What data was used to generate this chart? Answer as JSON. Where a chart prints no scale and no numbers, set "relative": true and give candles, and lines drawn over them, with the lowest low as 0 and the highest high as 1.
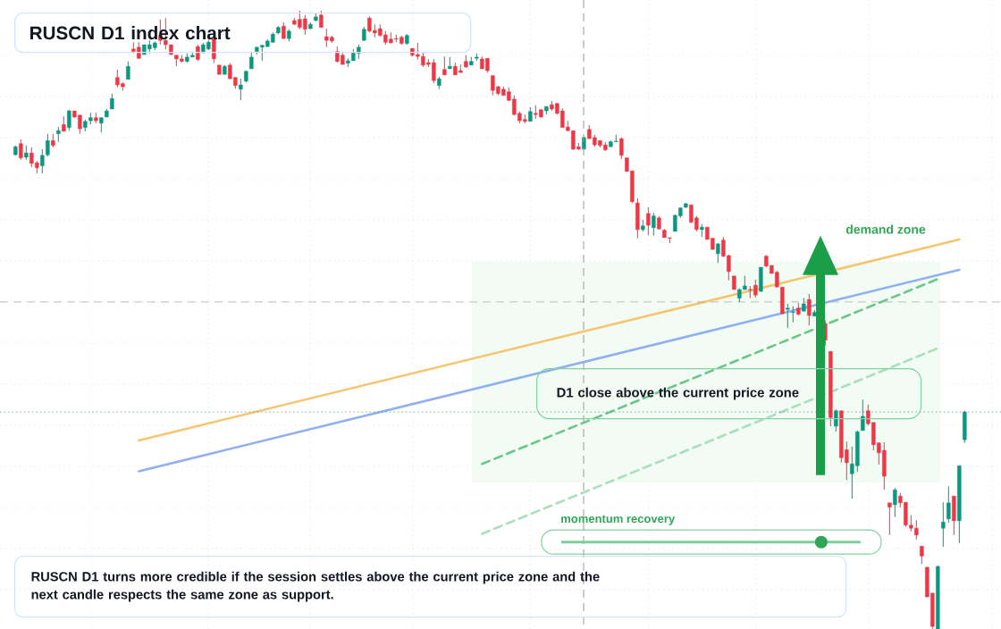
{
  "chart_data": {
    "type": "candlestick",
    "title": "RUSCN D1 index chart",
    "relative": true,
    "grid": true,
    "categories": [
      null,
      null,
      null,
      null,
      null,
      null,
      null,
      null,
      null,
      null,
      null,
      null,
      null,
      null,
      null,
      null,
      null,
      null,
      null,
      null,
      null,
      null,
      null,
      null,
      null,
      null,
      null,
      null,
      null,
      null,
      null,
      null,
      null,
      null,
      null,
      null,
      null,
      null,
      null,
      null,
      null,
      null,
      null,
      null,
      null,
      null,
      null,
      null,
      null,
      null,
      null,
      null,
      null,
      null,
      null,
      null,
      null,
      null,
      null,
      null,
      null,
      null,
      null,
      null,
      null,
      null,
      null,
      null,
      null,
      null,
      null,
      null,
      null,
      null,
      null,
      null,
      null,
      null,
      null,
      null,
      null,
      null,
      null,
      null,
      null,
      null,
      null,
      null,
      null,
      null,
      null,
      null,
      null,
      null,
      null,
      null,
      null,
      null,
      null,
      null,
      null,
      null,
      null,
      null,
      null,
      null,
      null,
      null,
      null,
      null,
      null,
      null,
      null,
      null,
      null,
      null,
      null,
      null,
      null,
      null,
      null,
      null,
      null,
      null,
      null,
      null,
      null,
      null,
      null,
      null,
      null,
      null,
      null,
      null,
      null,
      null,
      null,
      null,
      null,
      null,
      null,
      null,
      null,
      null,
      null,
      null,
      null,
      null,
      null,
      null,
      null,
      null,
      null,
      null,
      null,
      null,
      null,
      null,
      null,
      null,
      null,
      null,
      null,
      null,
      null,
      null,
      null,
      null,
      null,
      null,
      null,
      null,
      null,
      null,
      null,
      null,
      null,
      null
    ],
    "ohlc": [
      [
        0.767,
        0.782,
        0.766,
        0.78
      ],
      [
        0.785,
        0.792,
        0.759,
        0.762
      ],
      [
        0.763,
        0.782,
        0.759,
        0.77
      ],
      [
        0.77,
        0.779,
        0.747,
        0.753
      ],
      [
        0.754,
        0.757,
        0.737,
        0.746
      ],
      [
        0.749,
        0.776,
        0.737,
        0.766
      ],
      [
        0.767,
        0.801,
        0.764,
        0.79
      ],
      [
        0.79,
        0.801,
        0.779,
        0.782
      ],
      [
        0.801,
        0.812,
        0.788,
        0.806
      ],
      [
        0.816,
        0.829,
        0.805,
        0.805
      ],
      [
        0.811,
        0.84,
        0.806,
        0.838
      ],
      [
        0.838,
        0.838,
        0.827,
        0.828
      ],
      [
        0.831,
        0.832,
        0.801,
        0.809
      ],
      [
        0.811,
        0.824,
        0.805,
        0.821
      ],
      [
        0.822,
        0.835,
        0.816,
        0.827
      ],
      [
        0.827,
        0.835,
        0.818,
        0.822
      ],
      [
        0.818,
        0.827,
        0.803,
        0.827
      ],
      [
        0.828,
        0.841,
        0.828,
        0.838
      ],
      [
        0.841,
        0.866,
        0.841,
        0.858
      ],
      [
        0.892,
        0.905,
        0.876,
        0.88
      ],
      [
        0.882,
        0.884,
        0.871,
        0.877
      ],
      [
        0.889,
        0.918,
        0.889,
        0.91
      ],
      [
        0.938,
        0.949,
        0.931,
        0.934
      ],
      [
        0.941,
        0.949,
        0.922,
        0.923
      ],
      [
        0.929,
        0.945,
        0.929,
        0.945
      ],
      [
        0.938,
        0.952,
        0.931,
        0.945
      ],
      [
        0.94,
        0.95,
        0.936,
        0.948
      ],
      [
        0.96,
        0.986,
        0.945,
        0.952
      ],
      [
        0.952,
        0.988,
        0.938,
        0.945
      ],
      [
        0.945,
        0.945,
        0.929,
        0.929
      ],
      [
        0.928,
        0.928,
        0.91,
        0.922
      ],
      [
        0.922,
        0.928,
        0.916,
        0.918
      ],
      [
        0.918,
        0.931,
        0.916,
        0.925
      ],
      [
        0.925,
        0.934,
        0.925,
        0.928
      ],
      [
        0.942,
        0.945,
        0.919,
        0.921
      ],
      [
        0.932,
        0.948,
        0.931,
        0.945
      ],
      [
        0.938,
        0.952,
        0.936,
        0.949
      ],
      [
        0.955,
        0.955,
        0.915,
        0.922
      ],
      [
        0.912,
        0.912,
        0.897,
        0.897
      ],
      [
        0.897,
        0.912,
        0.897,
        0.91
      ],
      [
        0.912,
        0.915,
        0.889,
        0.89
      ],
      [
        0.892,
        0.893,
        0.874,
        0.879
      ],
      [
        0.873,
        0.89,
        0.855,
        0.88
      ],
      [
        0.886,
        0.903,
        0.884,
        0.902
      ],
      [
        0.906,
        0.934,
        0.906,
        0.925
      ],
      [
        0.934,
        0.941,
        0.929,
        0.941
      ],
      [
        0.941,
        0.945,
        0.919,
        0.944
      ],
      [
        0.942,
        0.954,
        0.941,
        0.951
      ],
      [
        0.949,
        0.965,
        0.948,
        0.962
      ],
      [
        0.964,
        0.975,
        0.962,
        0.973
      ],
      [
        0.975,
        0.981,
        0.954,
        0.955
      ],
      [
        0.955,
        0.97,
        0.951,
        0.967
      ],
      [
        0.984,
        0.988,
        0.977,
        0.978
      ],
      [
        0.986,
        1,
        0.97,
        0.973
      ],
      [
        0.987,
        0.993,
        0.961,
        0.97
      ],
      [
        0.971,
        0.981,
        0.97,
        0.978
      ],
      [
        0.984,
        0.996,
        0.983,
        0.99
      ],
      [
        0.993,
        1,
        0.973,
        0.973
      ],
      [
        0.958,
        0.971,
        0.941,
        0.952
      ],
      [
        0.957,
        0.96,
        0.948,
        0.951
      ],
      [
        0.934,
        0.942,
        0.916,
        0.918
      ],
      [
        0.928,
        0.934,
        0.913,
        0.913
      ],
      [
        0.915,
        0.923,
        0.909,
        0.919
      ],
      [
        0.919,
        0.938,
        0.919,
        0.932
      ],
      [
        0.931,
        0.945,
        0.922,
        0.941
      ],
      [
        0.952,
        0.974,
        0.951,
        0.97
      ],
      [
        0.988,
        0.991,
        0.965,
        0.967
      ],
      [
        0.968,
        0.978,
        0.957,
        0.964
      ],
      [
        0.971,
        0.978,
        0.958,
        0.96
      ],
      [
        0.961,
        0.967,
        0.945,
        0.949
      ],
      [
        0.954,
        0.965,
        0.947,
        0.948
      ],
      [
        0.955,
        0.961,
        0.949,
        0.954
      ],
      [
        0.957,
        0.96,
        0.945,
        0.947
      ],
      [
        0.947,
        0.962,
        0.945,
        0.96
      ],
      [
        0.939,
        0.939,
        0.926,
        0.928
      ],
      [
        0.929,
        0.948,
        0.921,
        0.926
      ],
      [
        0.926,
        0.932,
        0.909,
        0.912
      ],
      [
        0.916,
        0.922,
        0.909,
        0.913
      ],
      [
        0.916,
        0.922,
        0.883,
        0.887
      ],
      [
        0.879,
        0.893,
        0.873,
        0.89
      ],
      [
        0.905,
        0.926,
        0.896,
        0.896
      ],
      [
        0.906,
        0.925,
        0.906,
        0.91
      ],
      [
        0.91,
        0.916,
        0.896,
        0.896
      ],
      [
        0.903,
        0.913,
        0.9,
        0.9
      ],
      [
        0.918,
        0.928,
        0.908,
        0.909
      ],
      [
        0.912,
        0.925,
        0.912,
        0.918
      ],
      [
        0.923,
        0.931,
        0.919,
        0.925
      ],
      [
        0.922,
        0.926,
        0.906,
        0.906
      ],
      [
        0.923,
        0.923,
        0.9,
        0.903
      ],
      [
        0.895,
        0.895,
        0.863,
        0.871
      ],
      [
        0.877,
        0.879,
        0.863,
        0.866
      ],
      [
        0.873,
        0.877,
        0.863,
        0.863
      ],
      [
        0.869,
        0.876,
        0.854,
        0.855
      ],
      [
        0.857,
        0.863,
        0.831,
        0.832
      ],
      [
        0.834,
        0.837,
        0.818,
        0.822
      ],
      [
        0.824,
        0.832,
        0.818,
        0.821
      ],
      [
        0.821,
        0.844,
        0.821,
        0.837
      ],
      [
        0.834,
        0.847,
        0.825,
        0.832
      ],
      [
        0.84,
        0.84,
        0.827,
        0.828
      ],
      [
        0.838,
        0.845,
        0.832,
        0.845
      ],
      [
        0.848,
        0.854,
        0.838,
        0.841
      ],
      [
        0.85,
        0.851,
        0.832,
        0.834
      ],
      [
        0.838,
        0.842,
        0.811,
        0.811
      ],
      [
        0.812,
        0.822,
        0.805,
        0.806
      ],
      [
        0.806,
        0.806,
        0.775,
        0.776
      ],
      [
        0.78,
        0.786,
        0.775,
        0.776
      ],
      [
        0.776,
        0.796,
        0.776,
        0.795
      ],
      [
        0.808,
        0.815,
        0.793,
        0.793
      ],
      [
        0.795,
        0.799,
        0.78,
        0.783
      ],
      [
        0.79,
        0.79,
        0.779,
        0.782
      ],
      [
        0.783,
        0.788,
        0.773,
        0.775
      ],
      [
        0.78,
        0.79,
        0.78,
        0.788
      ],
      [
        0.788,
        0.799,
        0.788,
        0.789
      ],
      [
        0.793,
        0.795,
        0.76,
        0.766
      ],
      [
        0.762,
        0.762,
        0.74,
        0.74
      ],
      [
        0.741,
        0.741,
        0.689,
        0.691
      ],
      [
        0.689,
        0.697,
        0.632,
        0.646
      ],
      [
        0.646,
        0.662,
        0.643,
        0.652
      ],
      [
        0.672,
        0.682,
        0.637,
        0.653
      ],
      [
        0.649,
        0.673,
        0.636,
        0.668
      ],
      [
        0.665,
        0.668,
        0.646,
        0.647
      ],
      [
        0.645,
        0.647,
        0.633,
        0.633
      ],
      [
        0.633,
        0.633,
        0.624,
        0.632
      ],
      [
        0.643,
        0.671,
        0.643,
        0.669
      ],
      [
        0.668,
        0.682,
        0.665,
        0.681
      ],
      [
        0.682,
        0.689,
        0.681,
        0.688
      ],
      [
        0.686,
        0.686,
        0.656,
        0.658
      ],
      [
        0.665,
        0.668,
        0.643,
        0.646
      ],
      [
        0.646,
        0.655,
        0.634,
        0.65
      ],
      [
        0.65,
        0.65,
        0.63,
        0.63
      ],
      [
        0.632,
        0.632,
        0.613,
        0.614
      ],
      [
        0.607,
        0.624,
        0.592,
        0.623
      ],
      [
        0.629,
        0.634,
        0.601,
        0.603
      ],
      [
        0.604,
        0.605,
        0.564,
        0.578
      ],
      [
        0.571,
        0.571,
        0.549,
        0.549
      ],
      [
        0.535,
        0.551,
        0.529,
        0.549
      ],
      [
        0.549,
        0.571,
        0.549,
        0.555
      ],
      [
        0.549,
        0.555,
        0.535,
        0.548
      ],
      [
        0.556,
        0.565,
        0.536,
        0.54
      ],
      [
        0.546,
        0.585,
        0.546,
        0.585
      ],
      [
        0.603,
        0.605,
        0.585,
        0.587
      ],
      [
        0.588,
        0.588,
        0.575,
        0.575
      ],
      [
        0.577,
        0.579,
        0.553,
        0.553
      ],
      [
        0.553,
        0.553,
        0.509,
        0.51
      ],
      [
        0.517,
        0.526,
        0.487,
        0.519
      ],
      [
        0.512,
        0.522,
        0.496,
        0.513
      ],
      [
        0.519,
        0.527,
        0.507,
        0.509
      ],
      [
        0.514,
        0.535,
        0.514,
        0.526
      ],
      [
        0.533,
        0.542,
        0.491,
        0.507
      ],
      [
        0.506,
        0.516,
        0.506,
        0.512
      ],
      null,
      [
        0.494,
        0.499,
        0.458,
        0.467
      ],
      [
        0.449,
        0.449,
        0.328,
        0.342
      ],
      [
        0.328,
        0.355,
        0.319,
        0.353
      ],
      [
        0.353,
        0.353,
        0.269,
        0.277
      ],
      [
        0.29,
        0.303,
        0.241,
        0.269
      ],
      [
        0.251,
        0.295,
        0.211,
        0.267
      ],
      [
        0.264,
        0.321,
        0.254,
        0.319
      ],
      [
        0.321,
        0.371,
        0.321,
        0.344
      ],
      [
        0.353,
        0.363,
        0.329,
        0.332
      ],
      [
        0.334,
        0.334,
        0.289,
        0.298
      ],
      [
        0.301,
        0.302,
        0.266,
        0.285
      ],
      [
        0.289,
        0.302,
        0.225,
        0.247
      ],
      [
        0.204,
        0.204,
        0.152,
        0.197
      ],
      [
        0.201,
        0.228,
        0.181,
        0.225
      ],
      [
        0.215,
        0.22,
        0.197,
        0.204
      ],
      [
        0.205,
        0.205,
        0.165,
        0.168
      ],
      [
        0.168,
        0.184,
        0.158,
        0.163
      ],
      [
        0.163,
        0.176,
        0.145,
        0.152
      ],
      [
        0.134,
        0.134,
        0.105,
        0.118
      ],
      [
        0.1,
        0.1,
        0.051,
        0.052
      ],
      [
        0.058,
        0.059,
        0,
        0.004
      ],
      [
        0,
        0.103,
        0,
        0.101
      ],
      [
        0.163,
        0.205,
        0.133,
        0.173
      ],
      [
        0.178,
        0.231,
        0.172,
        0.204
      ],
      [
        0.215,
        0.215,
        0.152,
        0.175
      ],
      [
        0.175,
        0.264,
        0.139,
        0.264
      ],
      [
        0.306,
        0.353,
        0.301,
        0.351
      ]
    ],
    "series": [
      {
        "type": "line",
        "values": [
          null,
          null,
          null,
          null,
          null,
          null,
          null,
          null,
          null,
          null,
          null,
          null,
          null,
          null,
          null,
          null,
          null,
          null,
          null,
          null,
          null,
          null,
          null,
          0.305,
          null,
          null,
          null,
          null,
          null,
          null,
          null,
          null,
          null,
          null,
          null,
          null,
          null,
          null,
          null,
          null,
          null,
          null,
          null,
          null,
          null,
          null,
          null,
          null,
          null,
          null,
          null,
          null,
          null,
          null,
          null,
          null,
          null,
          null,
          null,
          null,
          null,
          null,
          null,
          null,
          null,
          null,
          null,
          null,
          null,
          null,
          null,
          null,
          null,
          null,
          null,
          null,
          null,
          null,
          null,
          null,
          null,
          null,
          null,
          null,
          null,
          null,
          null,
          null,
          null,
          null,
          null,
          null,
          null,
          null,
          null,
          null,
          null,
          null,
          null,
          null,
          null,
          null,
          null,
          null,
          null,
          null,
          null,
          null,
          null,
          null,
          null,
          null,
          null,
          null,
          null,
          null,
          null,
          null,
          null,
          null,
          null,
          null,
          null,
          null,
          null,
          null,
          null,
          null,
          null,
          null,
          null,
          null,
          null,
          null,
          null,
          null,
          null,
          null,
          null,
          null,
          null,
          null,
          null,
          null,
          null,
          null,
          null,
          null,
          null,
          null,
          null,
          null,
          null,
          null,
          null,
          null,
          null,
          null,
          null,
          null,
          null,
          null,
          null,
          null,
          null,
          null,
          null,
          null,
          null,
          null,
          null,
          null,
          null,
          null,
          null,
          null,
          0.63,
          null
        ],
        "color": "#f6c56f"
      },
      {
        "type": "line",
        "values": [
          null,
          null,
          null,
          null,
          null,
          null,
          null,
          null,
          null,
          null,
          null,
          null,
          null,
          null,
          null,
          null,
          null,
          null,
          null,
          null,
          null,
          null,
          null,
          0.255,
          null,
          null,
          null,
          null,
          null,
          null,
          null,
          null,
          null,
          null,
          null,
          null,
          null,
          null,
          null,
          null,
          null,
          null,
          null,
          null,
          null,
          null,
          null,
          null,
          null,
          null,
          null,
          null,
          null,
          null,
          null,
          null,
          null,
          null,
          null,
          null,
          null,
          null,
          null,
          null,
          null,
          null,
          null,
          null,
          null,
          null,
          null,
          null,
          null,
          null,
          null,
          null,
          null,
          null,
          null,
          null,
          null,
          null,
          null,
          null,
          null,
          null,
          null,
          null,
          null,
          null,
          null,
          null,
          null,
          null,
          null,
          null,
          null,
          null,
          null,
          null,
          null,
          null,
          null,
          null,
          null,
          null,
          null,
          null,
          null,
          null,
          null,
          null,
          null,
          null,
          null,
          null,
          null,
          null,
          null,
          null,
          null,
          null,
          null,
          null,
          null,
          null,
          null,
          null,
          null,
          null,
          null,
          null,
          null,
          null,
          null,
          null,
          null,
          null,
          null,
          null,
          null,
          null,
          null,
          null,
          null,
          null,
          null,
          null,
          null,
          null,
          null,
          null,
          null,
          null,
          null,
          null,
          null,
          null,
          null,
          null,
          null,
          null,
          null,
          null,
          null,
          null,
          null,
          null,
          null,
          null,
          null,
          null,
          null,
          null,
          null,
          null,
          0.581,
          null
        ],
        "color": "#8fb0f0"
      },
      {
        "type": "line",
        "values": [
          null,
          null,
          null,
          null,
          null,
          null,
          null,
          null,
          null,
          null,
          null,
          null,
          null,
          null,
          null,
          null,
          null,
          null,
          null,
          null,
          null,
          null,
          null,
          null,
          null,
          null,
          null,
          null,
          null,
          null,
          null,
          null,
          null,
          null,
          null,
          null,
          null,
          null,
          null,
          null,
          null,
          null,
          null,
          null,
          null,
          null,
          null,
          null,
          null,
          null,
          null,
          null,
          null,
          null,
          null,
          null,
          null,
          null,
          null,
          null,
          null,
          null,
          null,
          null,
          null,
          null,
          null,
          null,
          null,
          null,
          null,
          null,
          null,
          null,
          null,
          null,
          null,
          null,
          null,
          null,
          null,
          null,
          null,
          null,
          null,
          null,
          null,
          0.267,
          null,
          null,
          null,
          null,
          null,
          null,
          null,
          null,
          null,
          null,
          null,
          null,
          null,
          null,
          null,
          null,
          null,
          null,
          null,
          null,
          null,
          null,
          null,
          null,
          null,
          null,
          null,
          null,
          null,
          null,
          null,
          null,
          null,
          null,
          null,
          null,
          null,
          null,
          null,
          null,
          null,
          null,
          null,
          null,
          null,
          null,
          null,
          null,
          null,
          null,
          null,
          null,
          null,
          null,
          null,
          null,
          null,
          null,
          null,
          null,
          null,
          null,
          null,
          null,
          null,
          null,
          null,
          null,
          null,
          null,
          null,
          null,
          null,
          null,
          null,
          null,
          null,
          null,
          null,
          null,
          null,
          null,
          null,
          null,
          0.566,
          null,
          null,
          null,
          null,
          null
        ],
        "color": "#6cc68b",
        "line_style": "dashed"
      },
      {
        "type": "line",
        "values": [
          null,
          null,
          null,
          null,
          null,
          null,
          null,
          null,
          null,
          null,
          null,
          null,
          null,
          null,
          null,
          null,
          null,
          null,
          null,
          null,
          null,
          null,
          null,
          null,
          null,
          null,
          null,
          null,
          null,
          null,
          null,
          null,
          null,
          null,
          null,
          null,
          null,
          null,
          null,
          null,
          null,
          null,
          null,
          null,
          null,
          null,
          null,
          null,
          null,
          null,
          null,
          null,
          null,
          null,
          null,
          null,
          null,
          null,
          null,
          null,
          null,
          null,
          null,
          null,
          null,
          null,
          null,
          null,
          null,
          null,
          null,
          null,
          null,
          null,
          null,
          null,
          null,
          null,
          null,
          null,
          null,
          null,
          null,
          null,
          null,
          null,
          null,
          0.154,
          null,
          null,
          null,
          null,
          null,
          null,
          null,
          null,
          null,
          null,
          null,
          null,
          null,
          null,
          null,
          null,
          null,
          null,
          null,
          null,
          null,
          null,
          null,
          null,
          null,
          null,
          null,
          null,
          null,
          null,
          null,
          null,
          null,
          null,
          null,
          null,
          null,
          null,
          null,
          null,
          null,
          null,
          null,
          null,
          null,
          null,
          null,
          null,
          null,
          null,
          null,
          null,
          null,
          null,
          null,
          null,
          null,
          null,
          null,
          null,
          null,
          null,
          null,
          null,
          null,
          null,
          null,
          null,
          null,
          null,
          null,
          null,
          null,
          null,
          null,
          null,
          null,
          null,
          null,
          null,
          null,
          null,
          null,
          null,
          0.454,
          null,
          null,
          null,
          null,
          null
        ],
        "color": "#a9dfbb",
        "line_style": "dashed"
      }
    ],
    "ref_lines": [
      {
        "axis": "y",
        "value": 0.529,
        "color": "#9a9a9a",
        "line_style": "dashed"
      },
      {
        "axis": "y",
        "value": 0.351,
        "color": "#2f7d63",
        "line_style": "dotted"
      }
    ],
    "bands": [
      {
        "axis": "y",
        "from": 0.237,
        "to": 0.594,
        "label": "demand zone",
        "color": "#f2fbf4"
      }
    ],
    "annotations": [
      "D1 close above the current price zone",
      "momentum recovery",
      "RUSCN D1 turns more credible if the session settles above the current price zone and the next candle respects the same zone as support."
    ]
  }
}
